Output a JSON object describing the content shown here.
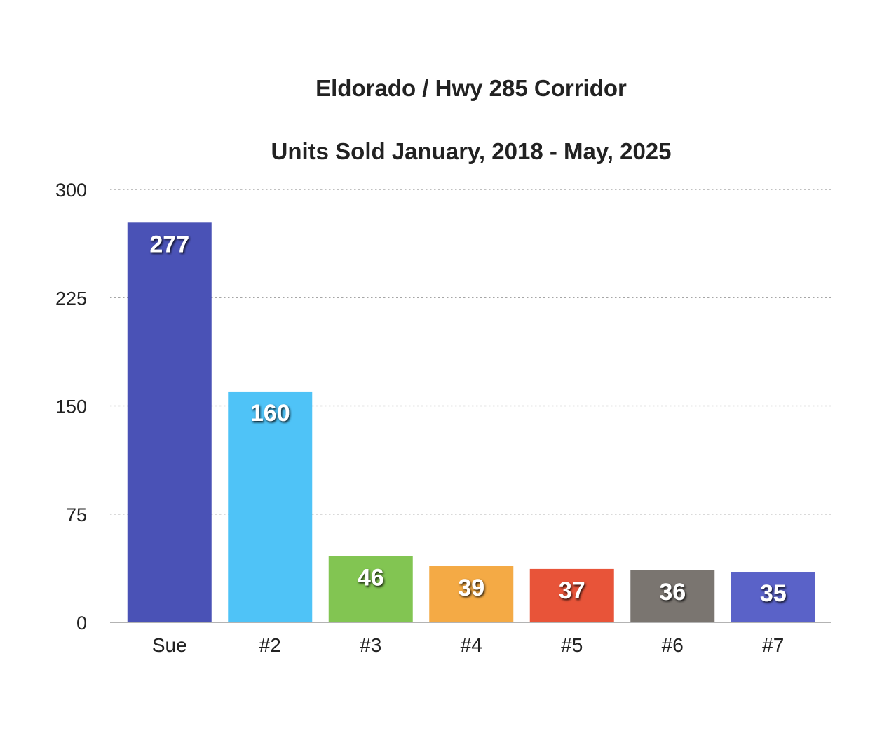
{
  "chart_data": {
    "type": "bar",
    "title": "Eldorado / Hwy 285 Corridor",
    "subtitle": "Units Sold January, 2018 - May, 2025",
    "xlabel": "",
    "ylabel": "",
    "categories": [
      "Sue",
      "#2",
      "#3",
      "#4",
      "#5",
      "#6",
      "#7"
    ],
    "values": [
      277,
      160,
      46,
      39,
      37,
      36,
      35
    ],
    "data_labels": [
      "277",
      "160",
      "46",
      "39",
      "37",
      "36",
      "35"
    ],
    "colors": [
      "#4a52b6",
      "#4fc3f7",
      "#82c552",
      "#f4aa45",
      "#e85439",
      "#7a7570",
      "#5a62c8"
    ],
    "ylim": [
      0,
      300
    ],
    "yticks": [
      0,
      75,
      150,
      225,
      300
    ],
    "ytick_labels": [
      "0",
      "75",
      "150",
      "225",
      "300"
    ],
    "grid": true,
    "grid_style": "dotted",
    "legend": "none"
  }
}
